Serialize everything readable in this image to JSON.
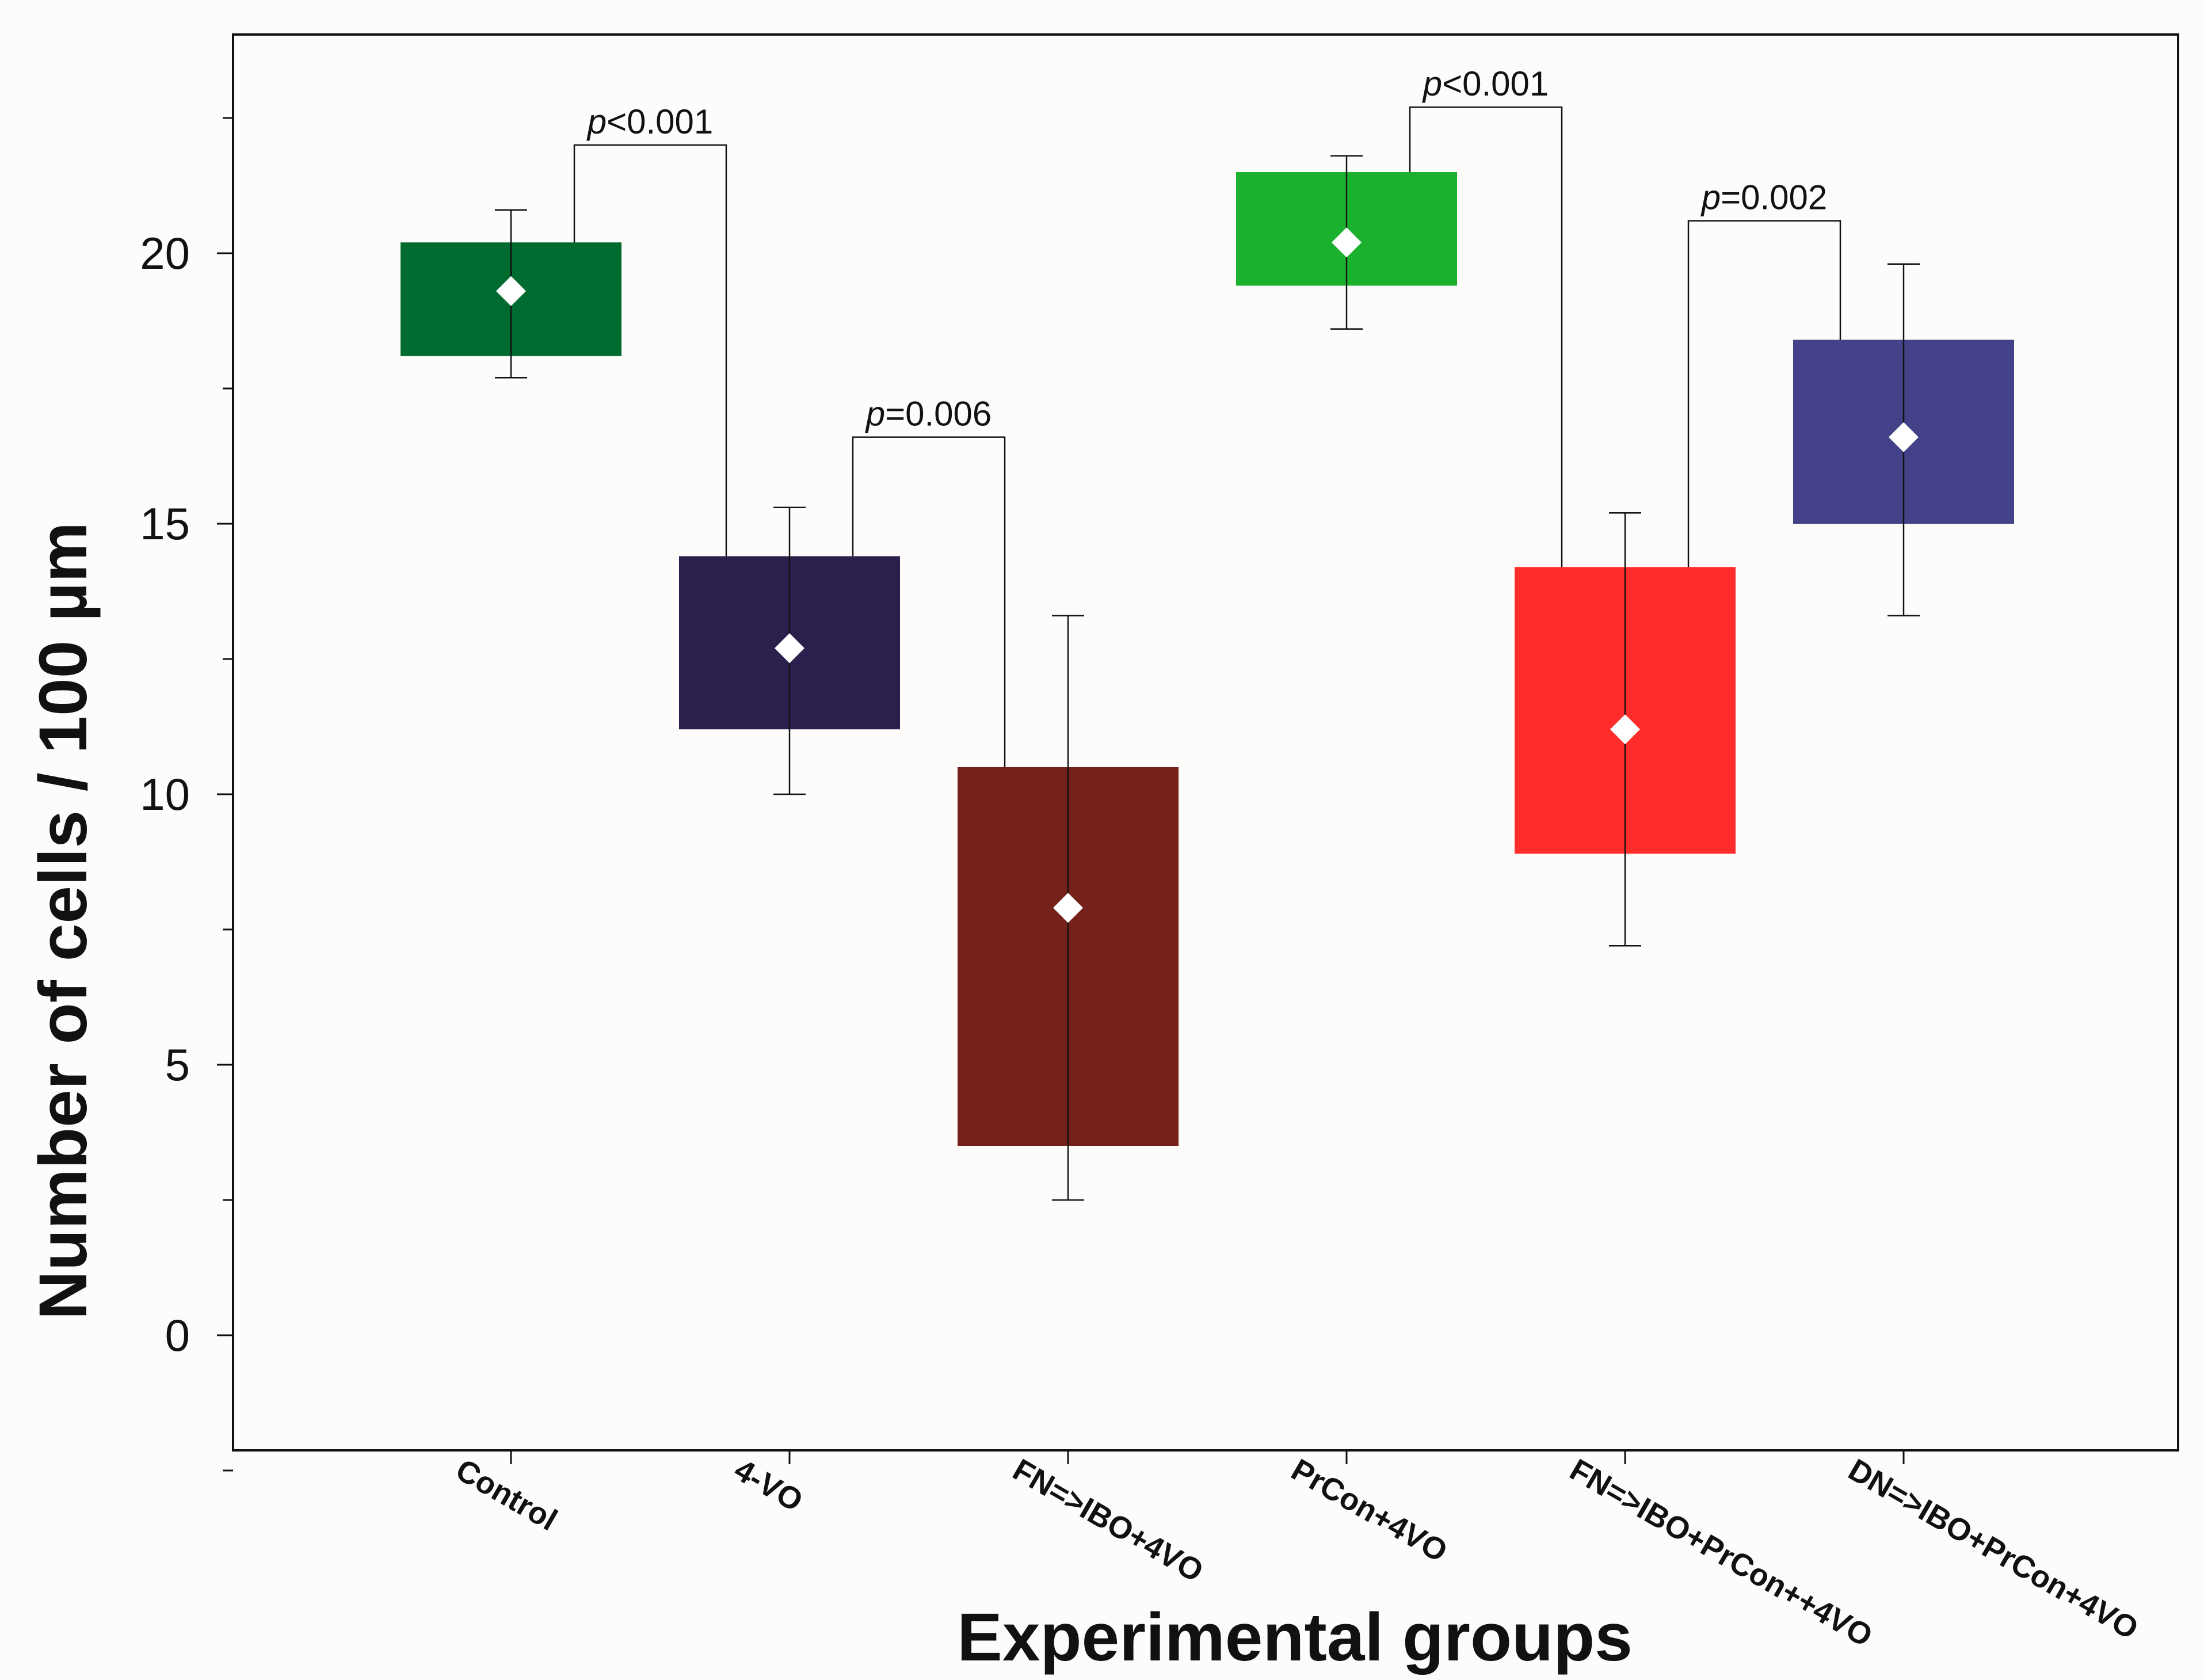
{
  "chart_data": {
    "type": "box",
    "title": "",
    "xlabel": "Experimental groups",
    "ylabel": "Number of cells / 100 µm",
    "ylim": [
      -2,
      24
    ],
    "yticks": [
      0,
      5,
      10,
      15,
      20
    ],
    "categories": [
      "Control",
      "4-VO",
      "FN=>IBO+4VO",
      "PrCon+4VO",
      "FN=>IBO+PrCon++4VO",
      "DN=>IBO+PrCon+4VO"
    ],
    "series": [
      {
        "name": "Control",
        "color": "#006b2e",
        "box_low": 18.1,
        "box_high": 20.2,
        "mean": 19.3,
        "whisker_low": 17.7,
        "whisker_high": 20.8
      },
      {
        "name": "4-VO",
        "color": "#2c1f4d",
        "box_low": 11.2,
        "box_high": 14.4,
        "mean": 12.7,
        "whisker_low": 10.0,
        "whisker_high": 15.3
      },
      {
        "name": "FN=>IBO+4VO",
        "color": "#74201b",
        "box_low": 3.5,
        "box_high": 10.5,
        "mean": 7.9,
        "whisker_low": 2.5,
        "whisker_high": 13.3
      },
      {
        "name": "PrCon+4VO",
        "color": "#1cb02f",
        "box_low": 19.4,
        "box_high": 21.5,
        "mean": 20.2,
        "whisker_low": 18.6,
        "whisker_high": 21.8
      },
      {
        "name": "FN=>IBO+PrCon++4VO",
        "color": "#fe2d2b",
        "box_low": 8.9,
        "box_high": 14.2,
        "mean": 11.2,
        "whisker_low": 7.2,
        "whisker_high": 15.2
      },
      {
        "name": "DN=>IBO+PrCon+4VO",
        "color": "#434187",
        "box_low": 15.0,
        "box_high": 18.4,
        "mean": 16.6,
        "whisker_low": 13.3,
        "whisker_high": 19.8
      }
    ],
    "annotations": [
      {
        "from": 0,
        "to": 1,
        "left_y": 20.2,
        "right_y": 14.4,
        "bracket_y": 22.0,
        "prefix": "p",
        "text": "<0.001"
      },
      {
        "from": 1,
        "to": 2,
        "left_y": 14.4,
        "right_y": 10.5,
        "bracket_y": 16.6,
        "prefix": "p",
        "text": "=0.006"
      },
      {
        "from": 3,
        "to": 4,
        "left_y": 21.5,
        "right_y": 14.2,
        "bracket_y": 22.7,
        "prefix": "p",
        "text": "<0.001"
      },
      {
        "from": 4,
        "to": 5,
        "left_y": 14.2,
        "right_y": 18.4,
        "bracket_y": 20.6,
        "prefix": "p",
        "text": "=0.002"
      }
    ]
  }
}
